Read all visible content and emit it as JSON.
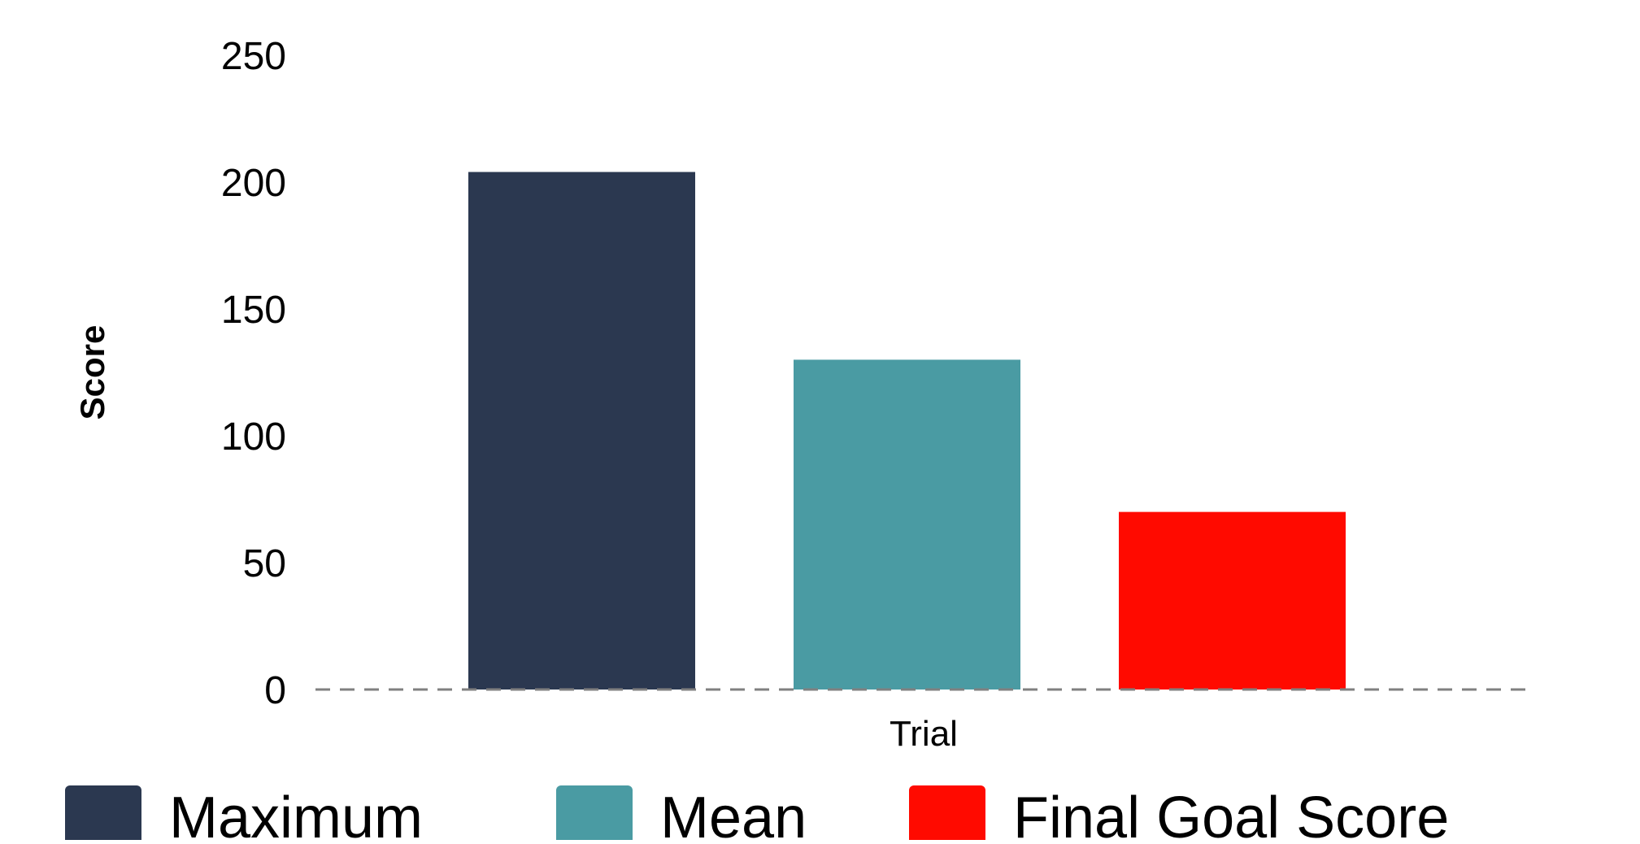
{
  "chart_data": {
    "type": "bar",
    "categories": [
      "Trial"
    ],
    "series": [
      {
        "name": "Maximum",
        "values": [
          204
        ],
        "color": "#2b3850"
      },
      {
        "name": "Mean",
        "values": [
          130
        ],
        "color": "#4a9ba3"
      },
      {
        "name": "Final Goal Score",
        "values": [
          70
        ],
        "color": "#ff0a00"
      }
    ],
    "title": "",
    "xlabel": "",
    "ylabel": "Score",
    "ylim": [
      0,
      250
    ],
    "yticks": [
      "0",
      "50",
      "100",
      "150",
      "200",
      "250"
    ],
    "grid": false,
    "baseline": "dashed",
    "legend_position": "bottom"
  }
}
